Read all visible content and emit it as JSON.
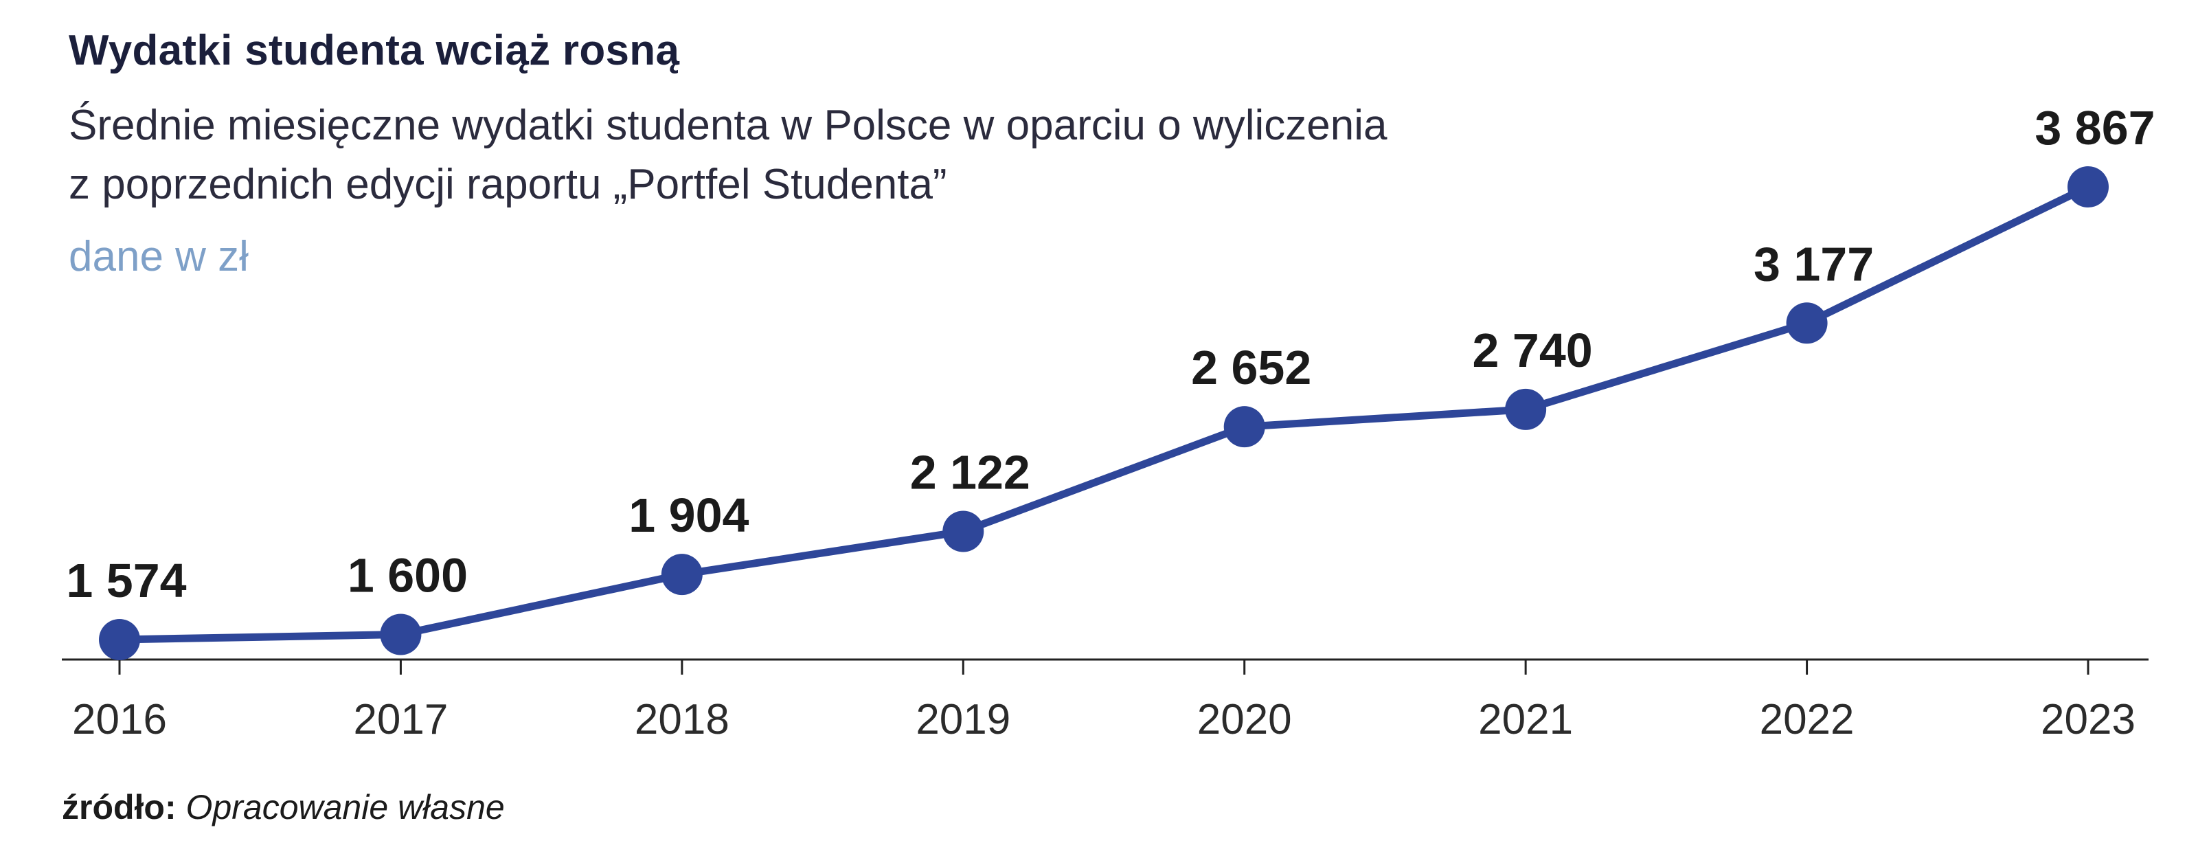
{
  "title": "Wydatki studenta wciąż rosną",
  "subtitle_line1": "Średnie miesięczne wydatki studenta w Polsce w oparciu o wyliczenia",
  "subtitle_line2": "z poprzednich edycji raportu „Portfel Studenta”",
  "unit_label": "dane w zł",
  "source": {
    "label": "źródło:",
    "text": "Opracowanie własne"
  },
  "colors": {
    "line": "#2e4699",
    "axis": "#222222",
    "title": "#1b1f3b",
    "unit": "#7ea0c8",
    "value_label": "#1b1b1b"
  },
  "chart_data": {
    "type": "line",
    "title": "Wydatki studenta wciąż rosną",
    "xlabel": "",
    "ylabel": "",
    "x": [
      "2016",
      "2017",
      "2018",
      "2019",
      "2020",
      "2021",
      "2022",
      "2023"
    ],
    "values": [
      1574,
      1600,
      1904,
      2122,
      2652,
      2740,
      3177,
      3867
    ],
    "value_labels": [
      "1 574",
      "1 600",
      "1 904",
      "2 122",
      "2 652",
      "2 740",
      "3 177",
      "3 867"
    ],
    "grid": false,
    "legend": "none"
  }
}
